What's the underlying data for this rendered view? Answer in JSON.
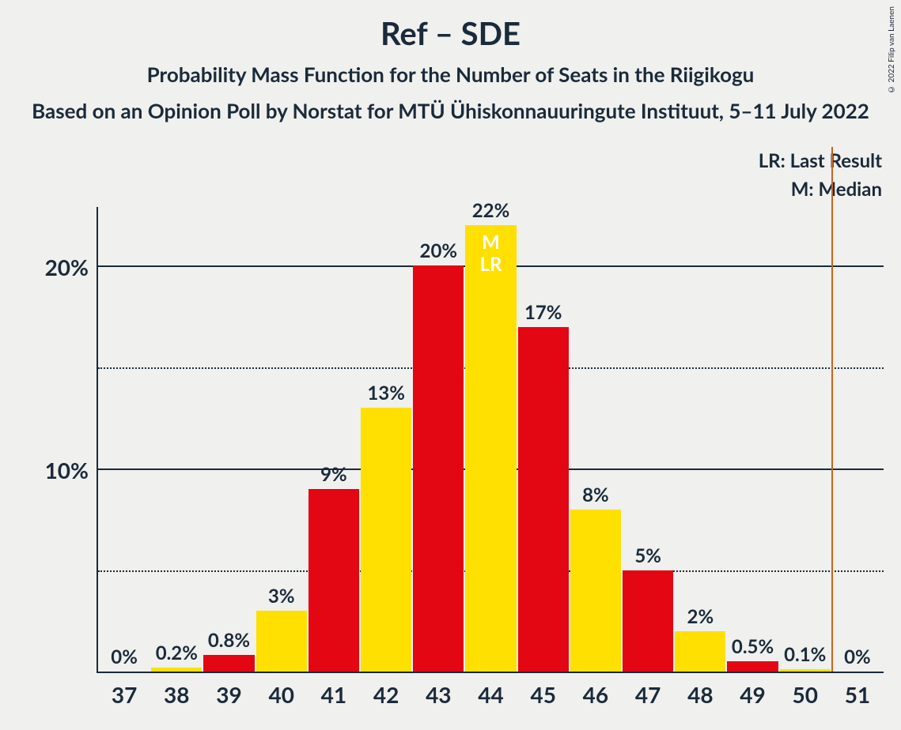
{
  "title": "Ref – SDE",
  "subtitle": "Probability Mass Function for the Number of Seats in the Riigikogu",
  "source": "Based on an Opinion Poll by Norstat for MTÜ Ühiskonnauuringute Instituut, 5–11 July 2022",
  "copyright": "© 2022 Filip van Laenen",
  "legend": {
    "lr": "LR: Last Result",
    "m": "M: Median"
  },
  "chart": {
    "type": "bar",
    "ymax": 22.9,
    "gridlines": [
      {
        "value": 20,
        "label": "20%",
        "style": "solid"
      },
      {
        "value": 15,
        "label": "",
        "style": "dotted"
      },
      {
        "value": 10,
        "label": "10%",
        "style": "solid"
      },
      {
        "value": 5,
        "label": "",
        "style": "dotted"
      }
    ],
    "bar_colors": {
      "red": "#e30613",
      "yellow": "#ffe000"
    },
    "majority_line": {
      "after_category": 50,
      "color": "#c7641a"
    },
    "text_color": "#1a2a3a",
    "background": "#f0f0ee",
    "label_fontsize": 24,
    "tick_fontsize": 28,
    "categories": [
      37,
      38,
      39,
      40,
      41,
      42,
      43,
      44,
      45,
      46,
      47,
      48,
      49,
      50,
      51
    ],
    "bars": [
      {
        "x": 37,
        "value": 0,
        "label": "0%",
        "color": "red"
      },
      {
        "x": 38,
        "value": 0.2,
        "label": "0.2%",
        "color": "yellow"
      },
      {
        "x": 39,
        "value": 0.8,
        "label": "0.8%",
        "color": "red"
      },
      {
        "x": 40,
        "value": 3,
        "label": "3%",
        "color": "yellow"
      },
      {
        "x": 41,
        "value": 9,
        "label": "9%",
        "color": "red"
      },
      {
        "x": 42,
        "value": 13,
        "label": "13%",
        "color": "yellow"
      },
      {
        "x": 43,
        "value": 20,
        "label": "20%",
        "color": "red"
      },
      {
        "x": 44,
        "value": 22,
        "label": "22%",
        "color": "yellow",
        "annot": [
          "M",
          "LR"
        ]
      },
      {
        "x": 45,
        "value": 17,
        "label": "17%",
        "color": "red"
      },
      {
        "x": 46,
        "value": 8,
        "label": "8%",
        "color": "yellow"
      },
      {
        "x": 47,
        "value": 5,
        "label": "5%",
        "color": "red"
      },
      {
        "x": 48,
        "value": 2,
        "label": "2%",
        "color": "yellow"
      },
      {
        "x": 49,
        "value": 0.5,
        "label": "0.5%",
        "color": "red"
      },
      {
        "x": 50,
        "value": 0.1,
        "label": "0.1%",
        "color": "yellow"
      },
      {
        "x": 51,
        "value": 0,
        "label": "0%",
        "color": "red"
      }
    ]
  }
}
